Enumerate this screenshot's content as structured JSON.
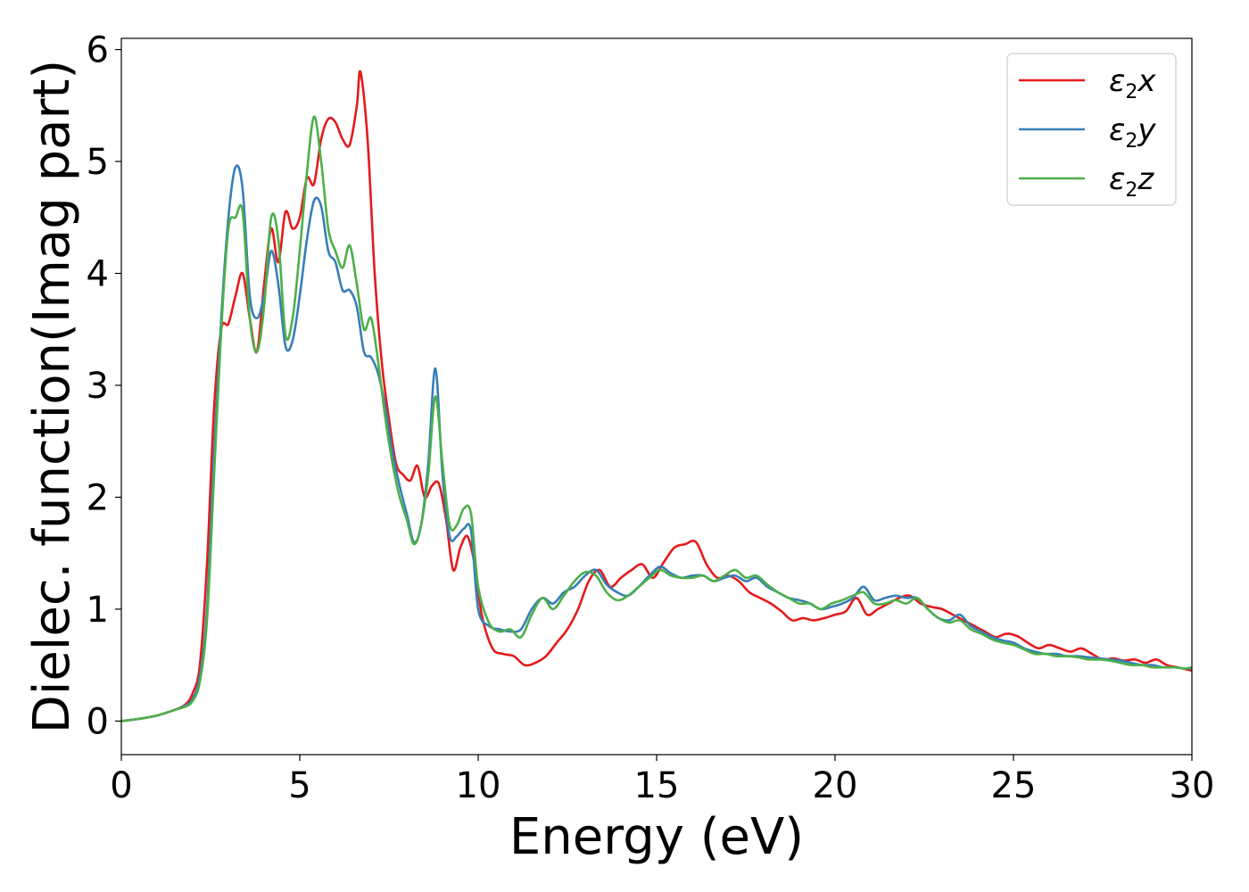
{
  "chart_data": {
    "type": "line",
    "xlabel": "Energy (eV)",
    "ylabel": "Dielec. function(Imag part)",
    "xlim": [
      0,
      30
    ],
    "ylim": [
      -0.3,
      6.1
    ],
    "xticks": [
      0,
      5,
      10,
      15,
      20,
      25,
      30
    ],
    "yticks": [
      0,
      1,
      2,
      3,
      4,
      5,
      6
    ],
    "grid": false,
    "legend_position": "top-right",
    "series": [
      {
        "name": "ε₂x",
        "legend_base": "ε",
        "legend_sub": "2",
        "legend_suffix": "x",
        "color": "#e41a1c",
        "x": [
          0,
          0.5,
          1.0,
          1.5,
          1.8,
          2.0,
          2.2,
          2.4,
          2.6,
          2.8,
          3.0,
          3.2,
          3.4,
          3.6,
          3.8,
          4.0,
          4.2,
          4.4,
          4.6,
          4.8,
          5.0,
          5.2,
          5.4,
          5.6,
          5.8,
          6.0,
          6.2,
          6.4,
          6.6,
          6.7,
          6.9,
          7.1,
          7.3,
          7.5,
          7.7,
          7.9,
          8.1,
          8.3,
          8.5,
          8.7,
          8.9,
          9.1,
          9.3,
          9.5,
          9.7,
          9.9,
          10.1,
          10.4,
          10.7,
          11.0,
          11.3,
          11.6,
          11.9,
          12.2,
          12.5,
          12.8,
          13.1,
          13.4,
          13.7,
          14.0,
          14.3,
          14.6,
          14.9,
          15.2,
          15.5,
          15.8,
          16.1,
          16.4,
          16.7,
          17.0,
          17.3,
          17.6,
          17.9,
          18.2,
          18.5,
          18.8,
          19.1,
          19.4,
          19.7,
          20.0,
          20.3,
          20.6,
          20.9,
          21.2,
          21.5,
          21.8,
          22.1,
          22.4,
          22.7,
          23.0,
          23.3,
          23.6,
          23.9,
          24.2,
          24.5,
          24.8,
          25.1,
          25.4,
          25.7,
          26.0,
          26.3,
          26.6,
          26.9,
          27.2,
          27.5,
          27.8,
          28.1,
          28.4,
          28.7,
          29.0,
          29.3,
          29.6,
          30.0
        ],
        "y": [
          0.0,
          0.02,
          0.05,
          0.1,
          0.15,
          0.25,
          0.5,
          1.4,
          2.8,
          3.5,
          3.55,
          3.8,
          4.0,
          3.6,
          3.3,
          3.9,
          4.4,
          4.1,
          4.55,
          4.4,
          4.5,
          4.85,
          4.8,
          5.2,
          5.38,
          5.35,
          5.2,
          5.15,
          5.5,
          5.8,
          5.2,
          4.0,
          3.2,
          2.7,
          2.3,
          2.2,
          2.15,
          2.28,
          2.0,
          2.1,
          2.12,
          1.8,
          1.35,
          1.55,
          1.65,
          1.4,
          0.95,
          0.65,
          0.6,
          0.58,
          0.5,
          0.52,
          0.58,
          0.7,
          0.82,
          1.0,
          1.25,
          1.35,
          1.2,
          1.28,
          1.35,
          1.4,
          1.28,
          1.42,
          1.55,
          1.58,
          1.6,
          1.4,
          1.28,
          1.3,
          1.25,
          1.15,
          1.1,
          1.05,
          0.98,
          0.9,
          0.92,
          0.9,
          0.92,
          0.95,
          0.98,
          1.1,
          0.95,
          1.0,
          1.05,
          1.1,
          1.12,
          1.05,
          1.02,
          1.0,
          0.95,
          0.9,
          0.85,
          0.8,
          0.75,
          0.78,
          0.76,
          0.7,
          0.65,
          0.68,
          0.65,
          0.62,
          0.65,
          0.6,
          0.55,
          0.56,
          0.54,
          0.55,
          0.52,
          0.55,
          0.5,
          0.48,
          0.45
        ]
      },
      {
        "name": "ε₂y",
        "legend_base": "ε",
        "legend_sub": "2",
        "legend_suffix": "y",
        "color": "#377eb8",
        "x": [
          0,
          0.5,
          1.0,
          1.5,
          1.8,
          2.0,
          2.2,
          2.4,
          2.6,
          2.8,
          3.0,
          3.2,
          3.4,
          3.6,
          3.8,
          4.0,
          4.2,
          4.4,
          4.6,
          4.8,
          5.0,
          5.2,
          5.4,
          5.6,
          5.8,
          6.0,
          6.2,
          6.4,
          6.6,
          6.8,
          7.0,
          7.2,
          7.4,
          7.6,
          7.8,
          8.0,
          8.2,
          8.4,
          8.6,
          8.8,
          9.0,
          9.2,
          9.4,
          9.6,
          9.8,
          10.0,
          10.3,
          10.6,
          10.9,
          11.2,
          11.5,
          11.8,
          12.1,
          12.4,
          12.7,
          13.0,
          13.3,
          13.6,
          13.9,
          14.2,
          14.5,
          14.8,
          15.1,
          15.4,
          15.7,
          16.0,
          16.3,
          16.6,
          16.9,
          17.2,
          17.5,
          17.8,
          18.1,
          18.4,
          18.7,
          19.0,
          19.3,
          19.6,
          19.9,
          20.2,
          20.5,
          20.8,
          21.1,
          21.4,
          21.7,
          22.0,
          22.3,
          22.6,
          22.9,
          23.2,
          23.5,
          23.8,
          24.1,
          24.4,
          24.7,
          25.0,
          25.3,
          25.6,
          25.9,
          26.2,
          26.5,
          26.8,
          27.1,
          27.4,
          27.7,
          28.0,
          28.3,
          28.6,
          28.9,
          29.2,
          29.5,
          29.8,
          30.0
        ],
        "y": [
          0.0,
          0.02,
          0.05,
          0.1,
          0.14,
          0.2,
          0.4,
          1.0,
          2.4,
          3.6,
          4.5,
          4.95,
          4.75,
          3.8,
          3.6,
          3.8,
          4.2,
          3.9,
          3.35,
          3.4,
          3.8,
          4.3,
          4.65,
          4.6,
          4.2,
          4.1,
          3.85,
          3.85,
          3.7,
          3.3,
          3.25,
          3.1,
          2.8,
          2.4,
          2.1,
          1.85,
          1.6,
          1.75,
          2.3,
          3.15,
          2.2,
          1.65,
          1.65,
          1.72,
          1.7,
          1.0,
          0.85,
          0.82,
          0.8,
          0.82,
          1.0,
          1.1,
          1.05,
          1.15,
          1.2,
          1.3,
          1.35,
          1.22,
          1.15,
          1.12,
          1.2,
          1.3,
          1.38,
          1.32,
          1.28,
          1.3,
          1.3,
          1.25,
          1.28,
          1.3,
          1.25,
          1.28,
          1.2,
          1.15,
          1.1,
          1.08,
          1.05,
          1.0,
          1.02,
          1.05,
          1.1,
          1.2,
          1.08,
          1.1,
          1.12,
          1.1,
          1.1,
          1.0,
          0.92,
          0.9,
          0.95,
          0.85,
          0.8,
          0.75,
          0.72,
          0.7,
          0.65,
          0.62,
          0.6,
          0.6,
          0.58,
          0.58,
          0.57,
          0.56,
          0.55,
          0.54,
          0.52,
          0.5,
          0.5,
          0.48,
          0.48,
          0.47,
          0.47
        ]
      },
      {
        "name": "ε₂z",
        "legend_base": "ε",
        "legend_sub": "2",
        "legend_suffix": "z",
        "color": "#4daf4a",
        "x": [
          0,
          0.5,
          1.0,
          1.5,
          1.8,
          2.0,
          2.2,
          2.4,
          2.6,
          2.8,
          3.0,
          3.2,
          3.4,
          3.6,
          3.8,
          4.0,
          4.2,
          4.4,
          4.6,
          4.8,
          5.0,
          5.2,
          5.4,
          5.6,
          5.8,
          6.0,
          6.2,
          6.4,
          6.6,
          6.8,
          7.0,
          7.2,
          7.4,
          7.6,
          7.8,
          8.0,
          8.2,
          8.4,
          8.6,
          8.8,
          9.0,
          9.2,
          9.4,
          9.6,
          9.8,
          10.0,
          10.3,
          10.6,
          10.9,
          11.2,
          11.5,
          11.8,
          12.1,
          12.4,
          12.7,
          13.0,
          13.3,
          13.6,
          13.9,
          14.2,
          14.5,
          14.8,
          15.1,
          15.4,
          15.7,
          16.0,
          16.3,
          16.6,
          16.9,
          17.2,
          17.5,
          17.8,
          18.1,
          18.4,
          18.7,
          19.0,
          19.3,
          19.6,
          19.9,
          20.2,
          20.5,
          20.8,
          21.1,
          21.4,
          21.7,
          22.0,
          22.3,
          22.6,
          22.9,
          23.2,
          23.5,
          23.8,
          24.1,
          24.4,
          24.7,
          25.0,
          25.3,
          25.6,
          25.9,
          26.2,
          26.5,
          26.8,
          27.1,
          27.4,
          27.7,
          28.0,
          28.3,
          28.6,
          28.9,
          29.2,
          29.5,
          29.8,
          30.0
        ],
        "y": [
          0.0,
          0.02,
          0.05,
          0.1,
          0.13,
          0.18,
          0.35,
          0.9,
          2.2,
          3.5,
          4.4,
          4.5,
          4.55,
          3.6,
          3.3,
          3.7,
          4.5,
          4.3,
          3.45,
          3.6,
          4.2,
          4.9,
          5.4,
          5.0,
          4.4,
          4.2,
          4.05,
          4.25,
          3.9,
          3.5,
          3.6,
          3.2,
          2.7,
          2.3,
          2.0,
          1.8,
          1.58,
          1.75,
          2.2,
          2.9,
          2.3,
          1.75,
          1.75,
          1.9,
          1.85,
          1.2,
          0.88,
          0.8,
          0.82,
          0.75,
          0.95,
          1.1,
          1.0,
          1.12,
          1.25,
          1.33,
          1.3,
          1.15,
          1.08,
          1.12,
          1.2,
          1.28,
          1.35,
          1.3,
          1.28,
          1.28,
          1.3,
          1.25,
          1.3,
          1.35,
          1.28,
          1.3,
          1.22,
          1.15,
          1.1,
          1.05,
          1.05,
          1.0,
          1.05,
          1.08,
          1.12,
          1.15,
          1.05,
          1.05,
          1.08,
          1.05,
          1.1,
          1.0,
          0.92,
          0.88,
          0.9,
          0.82,
          0.78,
          0.73,
          0.7,
          0.68,
          0.64,
          0.6,
          0.6,
          0.58,
          0.58,
          0.57,
          0.55,
          0.55,
          0.54,
          0.52,
          0.5,
          0.5,
          0.48,
          0.48,
          0.48,
          0.47,
          0.48
        ]
      }
    ]
  }
}
